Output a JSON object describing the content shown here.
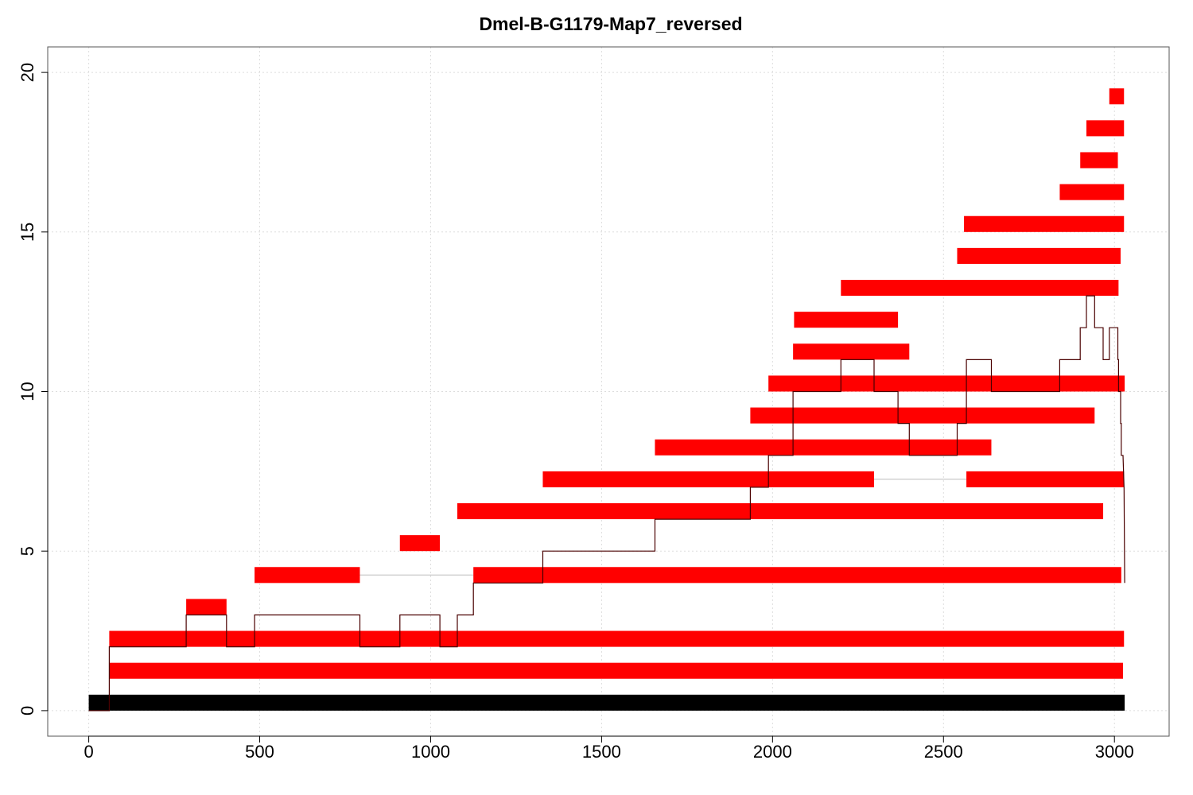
{
  "chart_data": {
    "type": "bar",
    "title": "Dmel-B-G1179-Map7_reversed",
    "xlabel": "",
    "ylabel": "",
    "xlim": [
      -120,
      3160
    ],
    "ylim": [
      -0.8,
      20.8
    ],
    "x_ticks": [
      0,
      500,
      1000,
      1500,
      2000,
      2500,
      3000
    ],
    "x_tick_labels": [
      "0",
      "500",
      "1000",
      "1500",
      "2000",
      "2500",
      "3000"
    ],
    "y_ticks": [
      0,
      5,
      10,
      15,
      20
    ],
    "y_tick_labels": [
      "0",
      "5",
      "10",
      "15",
      "20"
    ],
    "grid": true,
    "colors": {
      "read": "#ff0000",
      "reference": "#000000",
      "grid": "#dddddd",
      "coverage": "#4a0000",
      "connector": "#bbbbbb"
    },
    "reference": {
      "start": 0,
      "end": 3030,
      "row": 0
    },
    "reads": [
      {
        "row": 1,
        "segments": [
          [
            60,
            3025
          ]
        ]
      },
      {
        "row": 2,
        "segments": [
          [
            60,
            3028
          ]
        ]
      },
      {
        "row": 3,
        "segments": [
          [
            285,
            403
          ]
        ]
      },
      {
        "row": 4,
        "segments": [
          [
            485,
            793
          ],
          [
            1125,
            3020
          ]
        ]
      },
      {
        "row": 5,
        "segments": [
          [
            910,
            1027
          ]
        ]
      },
      {
        "row": 6,
        "segments": [
          [
            1078,
            2967
          ]
        ]
      },
      {
        "row": 7,
        "segments": [
          [
            1328,
            2297
          ],
          [
            2567,
            3028
          ]
        ]
      },
      {
        "row": 8,
        "segments": [
          [
            1656,
            2640
          ]
        ]
      },
      {
        "row": 9,
        "segments": [
          [
            1935,
            2942
          ]
        ]
      },
      {
        "row": 10,
        "segments": [
          [
            1988,
            3030
          ]
        ]
      },
      {
        "row": 11,
        "segments": [
          [
            2060,
            2400
          ]
        ]
      },
      {
        "row": 12,
        "segments": [
          [
            2063,
            2367
          ]
        ]
      },
      {
        "row": 13,
        "segments": [
          [
            2200,
            3012
          ]
        ]
      },
      {
        "row": 14,
        "segments": [
          [
            2540,
            3018
          ]
        ]
      },
      {
        "row": 15,
        "segments": [
          [
            2560,
            3028
          ]
        ]
      },
      {
        "row": 16,
        "segments": [
          [
            2840,
            3028
          ]
        ]
      },
      {
        "row": 17,
        "segments": [
          [
            2900,
            3010
          ]
        ]
      },
      {
        "row": 18,
        "segments": [
          [
            2918,
            3028
          ]
        ]
      },
      {
        "row": 19,
        "segments": [
          [
            2985,
            3028
          ]
        ]
      }
    ],
    "coverage": [
      [
        0,
        0
      ],
      [
        60,
        0
      ],
      [
        60,
        2
      ],
      [
        285,
        2
      ],
      [
        285,
        3
      ],
      [
        403,
        3
      ],
      [
        403,
        2
      ],
      [
        485,
        2
      ],
      [
        485,
        3
      ],
      [
        793,
        3
      ],
      [
        793,
        2
      ],
      [
        910,
        2
      ],
      [
        910,
        3
      ],
      [
        1027,
        3
      ],
      [
        1027,
        2
      ],
      [
        1078,
        2
      ],
      [
        1078,
        3
      ],
      [
        1125,
        3
      ],
      [
        1125,
        4
      ],
      [
        1328,
        4
      ],
      [
        1328,
        5
      ],
      [
        1656,
        5
      ],
      [
        1656,
        6
      ],
      [
        1935,
        6
      ],
      [
        1935,
        7
      ],
      [
        1988,
        7
      ],
      [
        1988,
        8
      ],
      [
        2060,
        8
      ],
      [
        2060,
        10
      ],
      [
        2200,
        10
      ],
      [
        2200,
        11
      ],
      [
        2297,
        11
      ],
      [
        2297,
        10
      ],
      [
        2367,
        10
      ],
      [
        2367,
        9
      ],
      [
        2400,
        9
      ],
      [
        2400,
        8
      ],
      [
        2540,
        8
      ],
      [
        2540,
        9
      ],
      [
        2567,
        9
      ],
      [
        2567,
        11
      ],
      [
        2640,
        11
      ],
      [
        2640,
        10
      ],
      [
        2840,
        10
      ],
      [
        2840,
        11
      ],
      [
        2900,
        11
      ],
      [
        2900,
        12
      ],
      [
        2918,
        12
      ],
      [
        2918,
        13
      ],
      [
        2942,
        13
      ],
      [
        2942,
        12
      ],
      [
        2967,
        12
      ],
      [
        2967,
        11
      ],
      [
        2985,
        11
      ],
      [
        2985,
        12
      ],
      [
        3010,
        12
      ],
      [
        3010,
        11
      ],
      [
        3012,
        11
      ],
      [
        3012,
        10
      ],
      [
        3018,
        10
      ],
      [
        3018,
        9
      ],
      [
        3020,
        9
      ],
      [
        3020,
        8
      ],
      [
        3025,
        8
      ],
      [
        3028,
        7
      ],
      [
        3030,
        4
      ]
    ]
  }
}
